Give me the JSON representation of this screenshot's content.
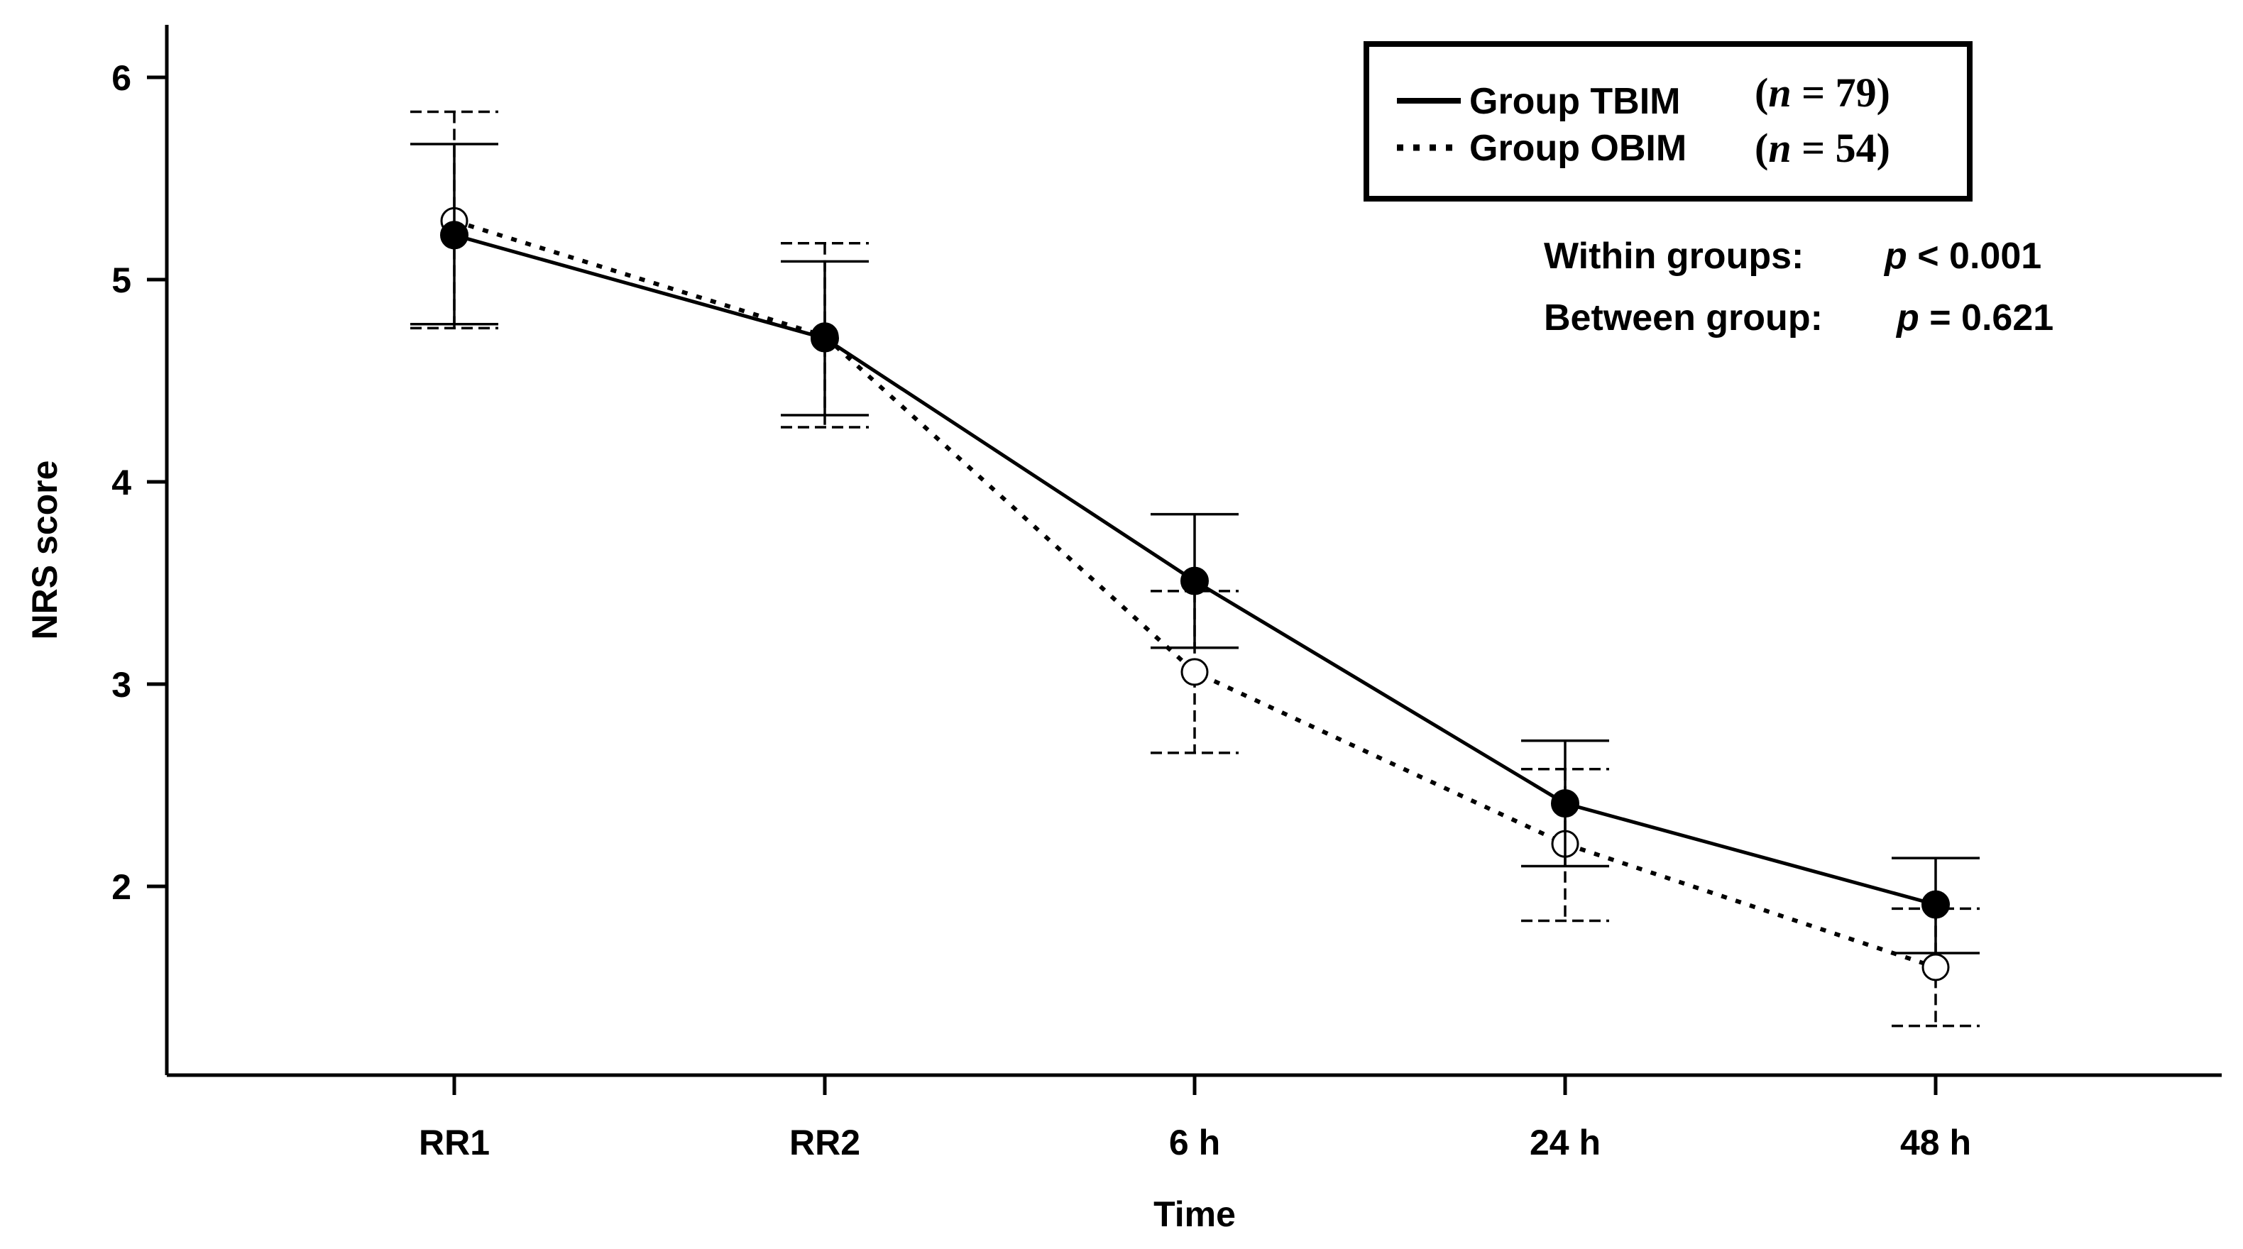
{
  "chart_data": {
    "type": "line",
    "title": "",
    "xlabel": "Time",
    "ylabel": "NRS score",
    "categories": [
      "RR1",
      "RR2",
      "6 h",
      "24 h",
      "48 h"
    ],
    "ylim": [
      1.0,
      6.25
    ],
    "yticks": [
      2,
      3,
      4,
      5,
      6
    ],
    "series": [
      {
        "name": "Group TBIM",
        "n_label": "(n = 79)",
        "n_prefix": "(",
        "n_italic": "n",
        "n_suffix": " = 79)",
        "line_style": "solid",
        "marker": "filled-circle",
        "values": [
          5.22,
          4.71,
          3.51,
          2.41,
          1.91
        ],
        "err_upper": [
          5.67,
          5.09,
          3.84,
          2.72,
          2.14
        ],
        "err_lower": [
          4.78,
          4.33,
          3.18,
          2.1,
          1.67
        ]
      },
      {
        "name": "Group OBIM",
        "n_label": "(n = 54)",
        "n_prefix": "(",
        "n_italic": "n",
        "n_suffix": " = 54)",
        "line_style": "dotted",
        "marker": "open-circle",
        "values": [
          5.29,
          4.72,
          3.06,
          2.21,
          1.6
        ],
        "err_upper": [
          5.83,
          5.18,
          3.46,
          2.58,
          1.89
        ],
        "err_lower": [
          4.76,
          4.27,
          2.66,
          1.83,
          1.31
        ]
      }
    ],
    "annotations": [
      {
        "label": "Within groups:",
        "p_italic": "p",
        "p_value": " < 0.001"
      },
      {
        "label": "Between group:",
        "p_italic": "p",
        "p_value": " = 0.621"
      }
    ],
    "legend_position": "top-right"
  }
}
